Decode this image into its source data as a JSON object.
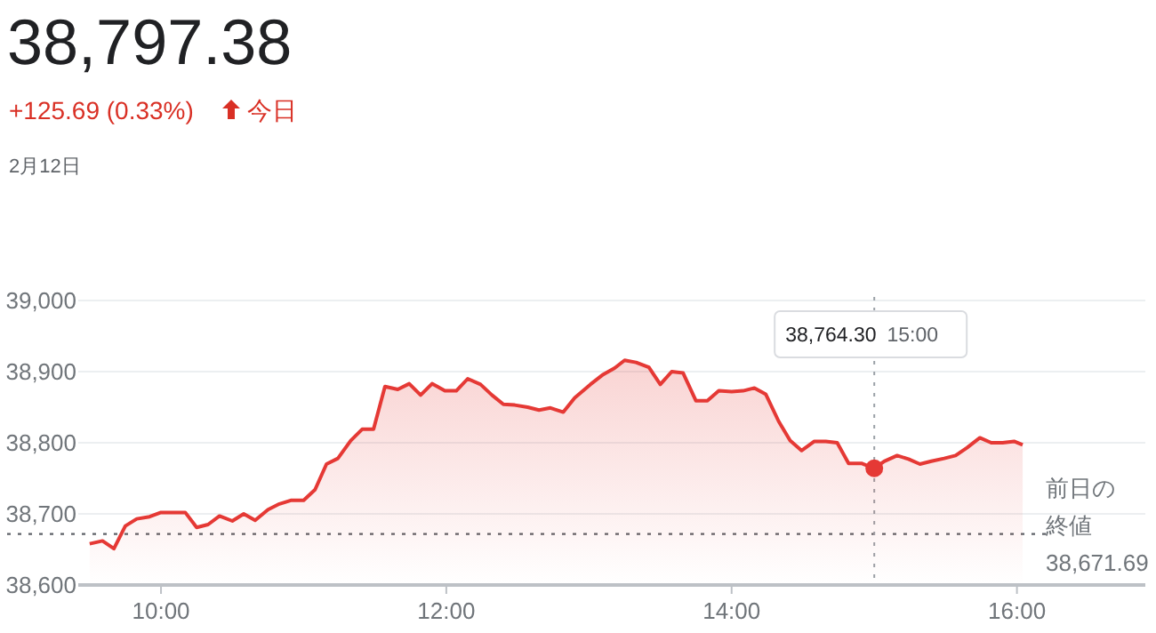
{
  "chart_data": {
    "type": "area",
    "title": "38,797.38",
    "subtitle": "+125.69 (0.33%)",
    "annotations": [
      "今日",
      "2月12日",
      "38,764.30 15:00",
      "38,671.69"
    ],
    "xlim": [
      9.42,
      16.9
    ],
    "ylim": [
      38600,
      39000
    ],
    "xticks": [
      {
        "value": 10,
        "label": "10:00"
      },
      {
        "value": 12,
        "label": "12:00"
      },
      {
        "value": 14,
        "label": "14:00"
      },
      {
        "value": 16,
        "label": "16:00"
      }
    ],
    "yticks": [
      {
        "value": 38600,
        "label": "38,600"
      },
      {
        "value": 38700,
        "label": "38,700"
      },
      {
        "value": 38800,
        "label": "38,800"
      },
      {
        "value": 38900,
        "label": "38,900"
      },
      {
        "value": 39000,
        "label": "39,000"
      }
    ],
    "grid": "y",
    "ref_lines": [
      {
        "axis": "y",
        "value": 38671.69,
        "label": "前日の終値",
        "color": "#5f6368",
        "line_style": "dotted"
      },
      {
        "axis": "x",
        "value": 15,
        "color": "#9aa0a6",
        "line_style": "dotted"
      }
    ],
    "series": [
      {
        "color": "#e53935",
        "x": [
          9.5,
          9.59,
          9.67,
          9.75,
          9.83,
          9.92,
          10.0,
          10.08,
          10.17,
          10.25,
          10.33,
          10.41,
          10.5,
          10.58,
          10.66,
          10.75,
          10.83,
          10.91,
          11.0,
          11.08,
          11.16,
          11.24,
          11.33,
          11.41,
          11.49,
          11.57,
          11.66,
          11.74,
          11.82,
          11.9,
          11.99,
          12.07,
          12.15,
          12.24,
          12.32,
          12.4,
          12.48,
          12.57,
          12.65,
          12.73,
          12.82,
          12.9,
          13.01,
          13.1,
          13.18,
          13.25,
          13.33,
          13.42,
          13.5,
          13.58,
          13.66,
          13.75,
          13.83,
          13.91,
          14.0,
          14.08,
          14.16,
          14.24,
          14.33,
          14.41,
          14.49,
          14.58,
          14.66,
          14.74,
          14.82,
          14.91,
          15.0,
          15.07,
          15.16,
          15.24,
          15.32,
          15.4,
          15.49,
          15.57,
          15.65,
          15.74,
          15.82,
          15.9,
          15.98,
          16.04
        ],
        "values": [
          38658,
          38662,
          38651,
          38683,
          38693,
          38696,
          38702,
          38702,
          38702,
          38681,
          38685,
          38697,
          38690,
          38700,
          38691,
          38706,
          38714,
          38719,
          38719,
          38734,
          38770,
          38778,
          38803,
          38819,
          38819,
          38879,
          38875,
          38883,
          38867,
          38883,
          38873,
          38873,
          38890,
          38882,
          38867,
          38854,
          38853,
          38850,
          38846,
          38849,
          38843,
          38863,
          38882,
          38896,
          38905,
          38916,
          38913,
          38906,
          38882,
          38900,
          38898,
          38859,
          38859,
          38873,
          38872,
          38873,
          38877,
          38868,
          38830,
          38803,
          38789,
          38802,
          38802,
          38800,
          38771,
          38771,
          38764,
          38774,
          38782,
          38777,
          38770,
          38774,
          38778,
          38782,
          38793,
          38807,
          38800,
          38800,
          38802,
          38797
        ]
      },
      {
        "type": "scatter",
        "color": "#e53935",
        "marker": "circle",
        "x": [
          15
        ],
        "values": [
          38764
        ]
      }
    ]
  }
}
